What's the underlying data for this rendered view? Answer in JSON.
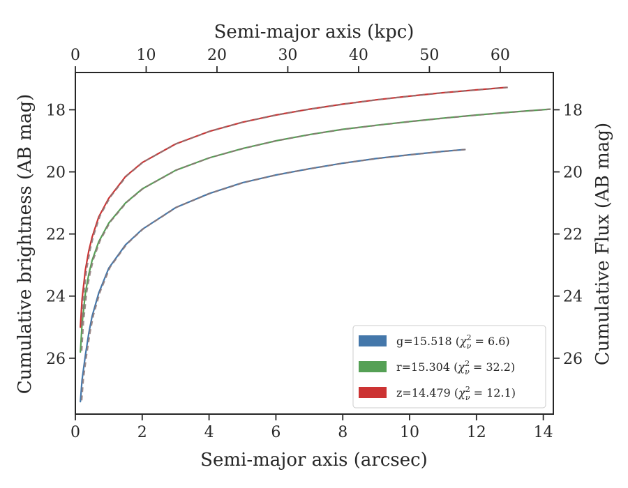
{
  "chart_data": {
    "type": "line",
    "xlabel": "Semi-major axis (arcsec)",
    "ylabel": "Cumulative brightness (AB mag)",
    "top_xlabel": "Semi-major axis (kpc)",
    "right_ylabel": "Cumulative Flux (AB mag)",
    "xlim": [
      0,
      14.3
    ],
    "ylim": [
      27.8,
      16.8
    ],
    "y_inverted": true,
    "top_xlim": [
      0,
      67.5
    ],
    "x_ticks": [
      0,
      2,
      4,
      6,
      8,
      10,
      12,
      14
    ],
    "y_ticks": [
      18,
      20,
      22,
      24,
      26
    ],
    "top_x_ticks": [
      0,
      10,
      20,
      30,
      40,
      50,
      60
    ],
    "legend_position": "lower-right",
    "grid": false,
    "series": [
      {
        "name": "g",
        "legend": {
          "prefix": "g=15.518 (",
          "chi": "χ",
          "sub": "ν",
          "sup": "2",
          "suffix": " = 6.6)"
        },
        "color": "#4477aa",
        "model_color": "#8d7777",
        "x": [
          0.15,
          0.2,
          0.3,
          0.4,
          0.5,
          0.7,
          1.0,
          1.5,
          2.0,
          3.0,
          4.0,
          5.0,
          6.0,
          7.0,
          8.0,
          9.0,
          10.0,
          11.0,
          11.65
        ],
        "y": [
          27.4,
          26.7,
          25.9,
          25.2,
          24.65,
          23.9,
          23.1,
          22.35,
          21.85,
          21.15,
          20.7,
          20.35,
          20.1,
          19.9,
          19.72,
          19.57,
          19.45,
          19.34,
          19.28
        ]
      },
      {
        "name": "r",
        "legend": {
          "prefix": "r=15.304 (",
          "chi": "χ",
          "sub": "ν",
          "sup": "2",
          "suffix": " = 32.2)"
        },
        "color": "#55a055",
        "model_color": "#8d7777",
        "x": [
          0.15,
          0.2,
          0.3,
          0.4,
          0.5,
          0.7,
          1.0,
          1.5,
          2.0,
          3.0,
          4.0,
          5.0,
          6.0,
          7.0,
          8.0,
          9.0,
          10.0,
          11.0,
          12.0,
          13.0,
          14.2
        ],
        "y": [
          25.8,
          24.9,
          23.9,
          23.3,
          22.85,
          22.25,
          21.65,
          21.0,
          20.55,
          19.95,
          19.55,
          19.25,
          19.0,
          18.8,
          18.63,
          18.5,
          18.38,
          18.27,
          18.17,
          18.08,
          17.98
        ]
      },
      {
        "name": "z",
        "legend": {
          "prefix": "z=14.479 (",
          "chi": "χ",
          "sub": "ν",
          "sup": "2",
          "suffix": " = 12.1)"
        },
        "color": "#cc3333",
        "model_color": "#8d7777",
        "x": [
          0.15,
          0.2,
          0.3,
          0.4,
          0.5,
          0.7,
          1.0,
          1.5,
          2.0,
          3.0,
          4.0,
          5.0,
          6.0,
          7.0,
          8.0,
          9.0,
          10.0,
          11.0,
          12.0,
          12.9
        ],
        "y": [
          25.0,
          24.1,
          23.15,
          22.55,
          22.1,
          21.45,
          20.85,
          20.15,
          19.7,
          19.1,
          18.7,
          18.4,
          18.17,
          17.98,
          17.82,
          17.68,
          17.56,
          17.45,
          17.36,
          17.28
        ]
      }
    ]
  }
}
